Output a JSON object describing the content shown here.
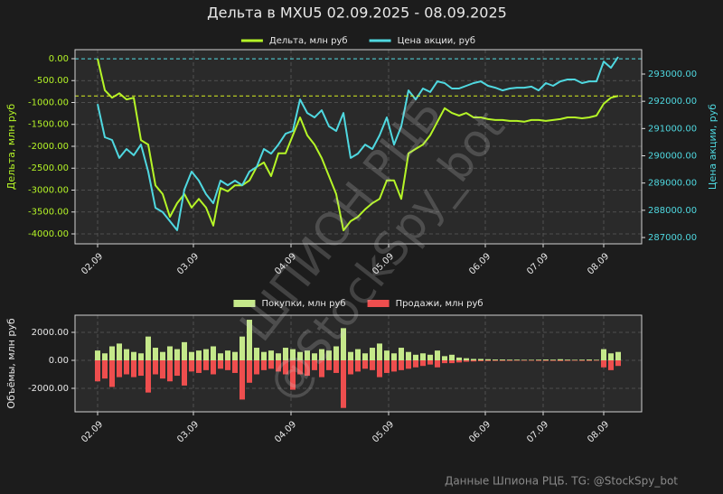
{
  "title": "Дельта в MXU5 02.09.2025 - 08.09.2025",
  "watermark": [
    "ШПИОН РЦБ",
    "@StockSpy_bot"
  ],
  "footer": "Данные Шпиона РЦБ. TG: @StockSpy_bot",
  "chart_data": [
    {
      "type": "line",
      "ylabel": "Дельта, млн руб",
      "y2label": "Цена акции, руб",
      "x": [
        0,
        2,
        4,
        6,
        8,
        10,
        12,
        14,
        16,
        18,
        20,
        22,
        24,
        26,
        28,
        30,
        32,
        34,
        36,
        38,
        40,
        42,
        44,
        46,
        48,
        50,
        52,
        54,
        56,
        58,
        60,
        62,
        64,
        66,
        68,
        70,
        72,
        74,
        76,
        78,
        80,
        82,
        84,
        86,
        88,
        90,
        92,
        94,
        96,
        98,
        100,
        102,
        104,
        106,
        108,
        110,
        112,
        114,
        116,
        118,
        120,
        122,
        124,
        126,
        128,
        130,
        132,
        134,
        136,
        138,
        140,
        142,
        144
      ],
      "xlim": [
        -6.25,
        150.5
      ],
      "xticks": [
        {
          "value": 0,
          "label": "02.09"
        },
        {
          "value": 26.5,
          "label": "03.09"
        },
        {
          "value": 53.5,
          "label": "04.09"
        },
        {
          "value": 80.5,
          "label": "05.09"
        },
        {
          "value": 107.25,
          "label": "06.09"
        },
        {
          "value": 123.25,
          "label": "07.09"
        },
        {
          "value": 140,
          "label": "08.09"
        }
      ],
      "ylim": [
        -4227,
        206
      ],
      "yticks": [
        {
          "value": 0,
          "label": "0.00"
        },
        {
          "value": -500,
          "label": "-500.00"
        },
        {
          "value": -1000,
          "label": "-1000.00"
        },
        {
          "value": -1500,
          "label": "-1500.00"
        },
        {
          "value": -2000,
          "label": "-2000.00"
        },
        {
          "value": -2500,
          "label": "-2500.00"
        },
        {
          "value": -3000,
          "label": "-3000.00"
        },
        {
          "value": -3500,
          "label": "-3500.00"
        },
        {
          "value": -4000,
          "label": "-4000.00"
        }
      ],
      "y2lim": [
        286768,
        293895
      ],
      "y2ticks": [
        {
          "value": 287000,
          "label": "287000.00"
        },
        {
          "value": 288000,
          "label": "288000.00"
        },
        {
          "value": 289000,
          "label": "289000.00"
        },
        {
          "value": 290000,
          "label": "290000.00"
        },
        {
          "value": 291000,
          "label": "291000.00"
        },
        {
          "value": 292000,
          "label": "292000.00"
        },
        {
          "value": 293000,
          "label": "293000.00"
        }
      ],
      "grid": true,
      "legend": "top",
      "series": [
        {
          "name": "Дельта, млн руб",
          "color": "#b5f527",
          "axis": "y",
          "values": [
            0,
            -720,
            -890,
            -790,
            -930,
            -890,
            -1860,
            -1960,
            -2890,
            -3090,
            -3610,
            -3300,
            -3090,
            -3400,
            -3200,
            -3400,
            -3810,
            -2950,
            -3030,
            -2890,
            -2890,
            -2780,
            -2470,
            -2370,
            -2680,
            -2160,
            -2160,
            -1750,
            -1340,
            -1750,
            -1960,
            -2270,
            -2680,
            -3090,
            -3920,
            -3710,
            -3610,
            -3440,
            -3300,
            -3200,
            -2780,
            -2780,
            -3200,
            -2160,
            -2060,
            -1960,
            -1750,
            -1440,
            -1130,
            -1240,
            -1300,
            -1240,
            -1340,
            -1340,
            -1380,
            -1400,
            -1400,
            -1420,
            -1420,
            -1440,
            -1400,
            -1400,
            -1420,
            -1400,
            -1380,
            -1340,
            -1340,
            -1360,
            -1340,
            -1300,
            -1030,
            -890,
            -850
          ]
        },
        {
          "name": "Цена акции, руб",
          "color": "#4fd8e0",
          "axis": "y2",
          "values": [
            291900,
            290680,
            290580,
            289920,
            290250,
            290020,
            290410,
            289420,
            288090,
            287930,
            287600,
            287270,
            288760,
            289420,
            289090,
            288590,
            288260,
            289090,
            288920,
            289090,
            288920,
            289420,
            289590,
            290250,
            290080,
            290410,
            290810,
            290910,
            292070,
            291570,
            291410,
            291670,
            291080,
            290910,
            291570,
            289920,
            290080,
            290410,
            290250,
            290750,
            291410,
            290410,
            291080,
            292400,
            292070,
            292470,
            292340,
            292730,
            292670,
            292470,
            292470,
            292570,
            292670,
            292730,
            292570,
            292500,
            292400,
            292470,
            292500,
            292500,
            292540,
            292400,
            292670,
            292570,
            292730,
            292800,
            292800,
            292670,
            292730,
            292730,
            293460,
            293230,
            293630
          ]
        }
      ],
      "ref_lines": [
        {
          "value": -850,
          "axis": "y",
          "color": "#d7f020"
        },
        {
          "value": 293560,
          "axis": "y2",
          "color": "#4fd8e0"
        }
      ]
    },
    {
      "type": "bar",
      "ylabel": "Объёмы, млн руб",
      "x": [
        0,
        2,
        4,
        6,
        8,
        10,
        12,
        14,
        16,
        18,
        20,
        22,
        24,
        26,
        28,
        30,
        32,
        34,
        36,
        38,
        40,
        42,
        44,
        46,
        48,
        50,
        52,
        54,
        56,
        58,
        60,
        62,
        64,
        66,
        68,
        70,
        72,
        74,
        76,
        78,
        80,
        82,
        84,
        86,
        88,
        90,
        92,
        94,
        96,
        98,
        100,
        102,
        104,
        106,
        108,
        110,
        112,
        114,
        116,
        118,
        120,
        122,
        124,
        126,
        128,
        130,
        132,
        134,
        136,
        138,
        140,
        142,
        144
      ],
      "xlim": [
        -6.25,
        150.5
      ],
      "xticks": [
        {
          "value": 0,
          "label": "02.09"
        },
        {
          "value": 26.5,
          "label": "03.09"
        },
        {
          "value": 53.5,
          "label": "04.09"
        },
        {
          "value": 80.5,
          "label": "05.09"
        },
        {
          "value": 107.25,
          "label": "06.09"
        },
        {
          "value": 123.25,
          "label": "07.09"
        },
        {
          "value": 140,
          "label": "08.09"
        }
      ],
      "ylim": [
        -3677,
        3226
      ],
      "yticks": [
        {
          "value": -2000,
          "label": "-2000.00"
        },
        {
          "value": 0,
          "label": "0.00"
        },
        {
          "value": 2000,
          "label": "2000.00"
        }
      ],
      "grid": true,
      "legend": "top",
      "series": [
        {
          "name": "Покупки, млн руб",
          "color": "#c5e88a",
          "values": [
            700,
            500,
            1000,
            1200,
            800,
            600,
            500,
            1700,
            900,
            600,
            1000,
            800,
            1300,
            600,
            700,
            800,
            1000,
            500,
            700,
            600,
            1700,
            2900,
            900,
            600,
            700,
            500,
            900,
            800,
            600,
            700,
            500,
            800,
            700,
            1000,
            2300,
            600,
            800,
            500,
            900,
            1200,
            700,
            500,
            900,
            600,
            400,
            500,
            400,
            700,
            300,
            400,
            200,
            150,
            100,
            100,
            80,
            60,
            60,
            50,
            50,
            40,
            40,
            50,
            60,
            50,
            80,
            50,
            40,
            50,
            60,
            40,
            800,
            500,
            600
          ]
        },
        {
          "name": "Продажи, млн руб",
          "color": "#ee4e4e",
          "values": [
            -1500,
            -1300,
            -1900,
            -1200,
            -1000,
            -1200,
            -1100,
            -2300,
            -1000,
            -1300,
            -1500,
            -1100,
            -1800,
            -800,
            -900,
            -700,
            -1000,
            -600,
            -700,
            -900,
            -2800,
            -1600,
            -1000,
            -700,
            -600,
            -800,
            -1000,
            -2100,
            -1000,
            -1100,
            -700,
            -1200,
            -700,
            -900,
            -3400,
            -1000,
            -800,
            -600,
            -700,
            -1200,
            -900,
            -800,
            -700,
            -600,
            -500,
            -400,
            -300,
            -500,
            -200,
            -200,
            -150,
            -100,
            -80,
            -60,
            -50,
            -40,
            -40,
            -40,
            -30,
            -30,
            -30,
            -40,
            -40,
            -40,
            -50,
            -40,
            -30,
            -40,
            -40,
            -30,
            -500,
            -700,
            -400
          ]
        }
      ]
    }
  ]
}
